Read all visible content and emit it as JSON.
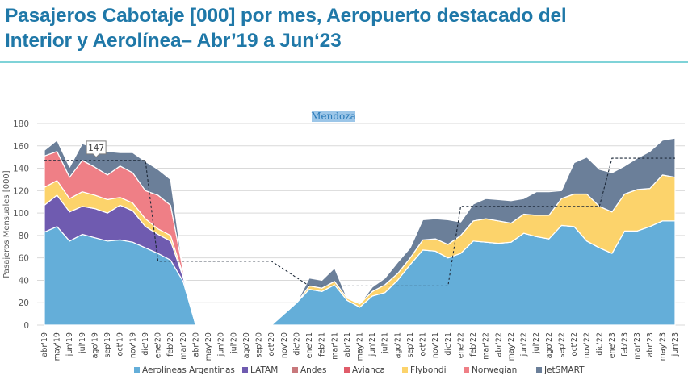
{
  "title": {
    "line1": "Pasajeros Cabotaje [000] por mes, Aeropuerto destacado del",
    "line2": "Interior y Aerolínea– Abr’19 a Jun‘23"
  },
  "chart_data": {
    "type": "area",
    "stacked": true,
    "subtitle": "Mendoza",
    "xlabel": "",
    "ylabel": "Pasajeros Mensuales [000]",
    "ylim": [
      0,
      180
    ],
    "yticks": [
      0,
      20,
      40,
      60,
      80,
      100,
      120,
      140,
      160,
      180
    ],
    "grid": true,
    "legend_position": "bottom",
    "x": [
      "abr'19",
      "may'19",
      "jun'19",
      "jul'19",
      "ago'19",
      "sep'19",
      "oct'19",
      "nov'19",
      "dic'19",
      "ene'20",
      "feb'20",
      "mar'20",
      "abr'20",
      "may'20",
      "jun'20",
      "jul'20",
      "ago'20",
      "sep'20",
      "oct'20",
      "nov'20",
      "dic'20",
      "ene'21",
      "feb'21",
      "mar'21",
      "abr'21",
      "may'21",
      "jun'21",
      "jul'21",
      "ago'21",
      "sep'21",
      "oct'21",
      "nov'21",
      "dic'21",
      "ene'22",
      "feb'22",
      "mar'22",
      "abr'22",
      "may'22",
      "jun'22",
      "jul'22",
      "ago'22",
      "sep'22",
      "oct'22",
      "nov'22",
      "dic'22",
      "ene'23",
      "feb'23",
      "mar'23",
      "abr'23",
      "may'23",
      "jun'23"
    ],
    "series": [
      {
        "name": "Aerolíneas Argentinas",
        "color": "#64aed9",
        "values": [
          83,
          88,
          75,
          81,
          78,
          75,
          76,
          74,
          69,
          64,
          58,
          39,
          0,
          0,
          0,
          0,
          0,
          0,
          0,
          10,
          20,
          32,
          30,
          36,
          22,
          16,
          26,
          29,
          40,
          54,
          67,
          66,
          60,
          64,
          75,
          74,
          73,
          74,
          82,
          79,
          77,
          89,
          88,
          75,
          69,
          64,
          84,
          84,
          88,
          93,
          93
        ]
      },
      {
        "name": "LATAM",
        "color": "#6f5bb0",
        "values": [
          24,
          28,
          26,
          25,
          26,
          25,
          31,
          28,
          19,
          17,
          17,
          4,
          0,
          0,
          0,
          0,
          0,
          0,
          0,
          0,
          0,
          0,
          0,
          0,
          0,
          0,
          0,
          0,
          0,
          0,
          0,
          0,
          0,
          0,
          0,
          0,
          0,
          0,
          0,
          0,
          0,
          0,
          0,
          0,
          0,
          0,
          0,
          0,
          0,
          0,
          0
        ]
      },
      {
        "name": "Andes",
        "color": "#c8787c",
        "values": [
          0,
          0,
          0,
          0,
          0,
          0,
          0,
          0,
          0,
          0,
          0,
          0,
          0,
          0,
          0,
          0,
          0,
          0,
          0,
          0,
          0,
          0,
          0,
          0,
          0,
          0,
          0,
          0,
          0,
          0,
          0,
          0,
          0,
          0,
          0,
          0,
          0,
          0,
          0,
          0,
          0,
          0,
          0,
          0,
          0,
          0,
          0,
          0,
          0,
          0,
          0
        ]
      },
      {
        "name": "Avianca",
        "color": "#e05c6a",
        "values": [
          0,
          0,
          0,
          0,
          0,
          0,
          0,
          0,
          0,
          0,
          0,
          0,
          0,
          0,
          0,
          0,
          0,
          0,
          0,
          0,
          0,
          0,
          0,
          0,
          0,
          0,
          0,
          0,
          0,
          0,
          0,
          0,
          0,
          0,
          0,
          0,
          0,
          0,
          0,
          0,
          0,
          0,
          0,
          0,
          0,
          0,
          0,
          0,
          0,
          0,
          0
        ]
      },
      {
        "name": "Flybondi",
        "color": "#fcd36b",
        "values": [
          16,
          13,
          12,
          13,
          12,
          12,
          7,
          7,
          7,
          5,
          5,
          2,
          0,
          0,
          0,
          0,
          0,
          0,
          0,
          0,
          0,
          3,
          3,
          3,
          2,
          3,
          4,
          7,
          6,
          6,
          9,
          11,
          12,
          16,
          18,
          21,
          20,
          17,
          17,
          19,
          21,
          24,
          29,
          42,
          37,
          37,
          33,
          37,
          34,
          41,
          39
        ]
      },
      {
        "name": "Norwegian",
        "color": "#ef7f86",
        "values": [
          28,
          26,
          19,
          28,
          25,
          22,
          28,
          27,
          25,
          30,
          27,
          4,
          0,
          0,
          0,
          0,
          0,
          0,
          0,
          0,
          0,
          0,
          0,
          0,
          0,
          0,
          0,
          0,
          0,
          0,
          0,
          0,
          0,
          0,
          0,
          0,
          0,
          0,
          0,
          0,
          0,
          0,
          0,
          0,
          0,
          0,
          0,
          0,
          0,
          0,
          0
        ]
      },
      {
        "name": "JetSMART",
        "color": "#6b7f99",
        "values": [
          5,
          10,
          9,
          15,
          17,
          21,
          12,
          18,
          26,
          23,
          23,
          0,
          0,
          0,
          0,
          0,
          0,
          0,
          0,
          0,
          0,
          7,
          7,
          12,
          0,
          0,
          4,
          6,
          10,
          9,
          18,
          18,
          22,
          12,
          15,
          18,
          19,
          20,
          14,
          21,
          21,
          7,
          28,
          33,
          33,
          35,
          25,
          28,
          33,
          31,
          35
        ]
      }
    ],
    "reference_line": {
      "style": "dashed",
      "color": "#1e2a3a",
      "segments": [
        {
          "from": "abr'19",
          "to": "dic'19",
          "value": 147
        },
        {
          "from": "ene'20",
          "to": "oct'20",
          "value": 57
        },
        {
          "from": "ene'21",
          "to": "dic'21",
          "value": 35
        },
        {
          "from": "ene'22",
          "to": "dic'22",
          "value": 106
        },
        {
          "from": "ene'23",
          "to": "jun'23",
          "value": 149
        }
      ]
    },
    "annotations": [
      {
        "text": "147",
        "at": "sep'19",
        "value": 147,
        "style": "callout-box"
      }
    ]
  }
}
